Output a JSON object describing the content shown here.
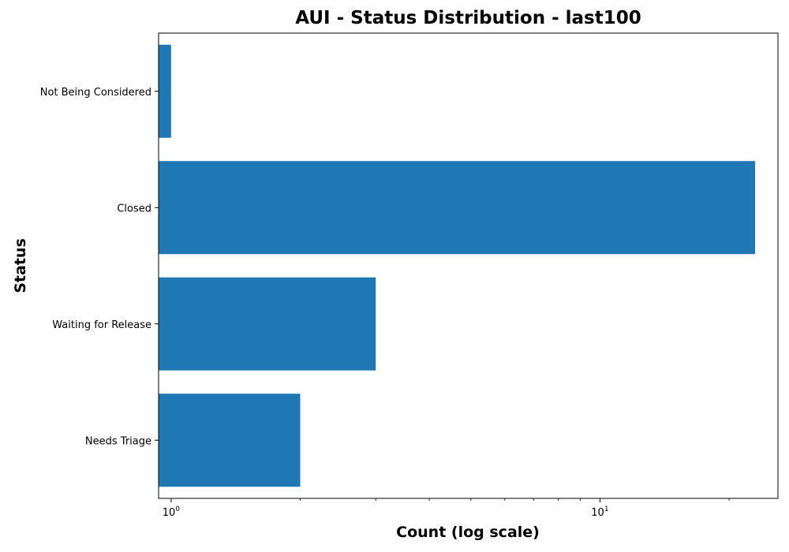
{
  "chart_data": {
    "type": "bar",
    "orientation": "horizontal",
    "title": "AUI - Status Distribution - last100",
    "xlabel": "Count (log scale)",
    "ylabel": "Status",
    "x_scale": "log",
    "xlim": [
      0.935,
      26
    ],
    "categories": [
      "Not Being Considered",
      "Closed",
      "Waiting for Release",
      "Needs Triage"
    ],
    "values": [
      1,
      23,
      3,
      2
    ],
    "x_ticks": [
      {
        "value": 1,
        "base": "10",
        "exp": "0"
      },
      {
        "value": 10,
        "base": "10",
        "exp": "1"
      }
    ],
    "bar_color": "#1f77b4",
    "grid": false,
    "legend": "none"
  }
}
